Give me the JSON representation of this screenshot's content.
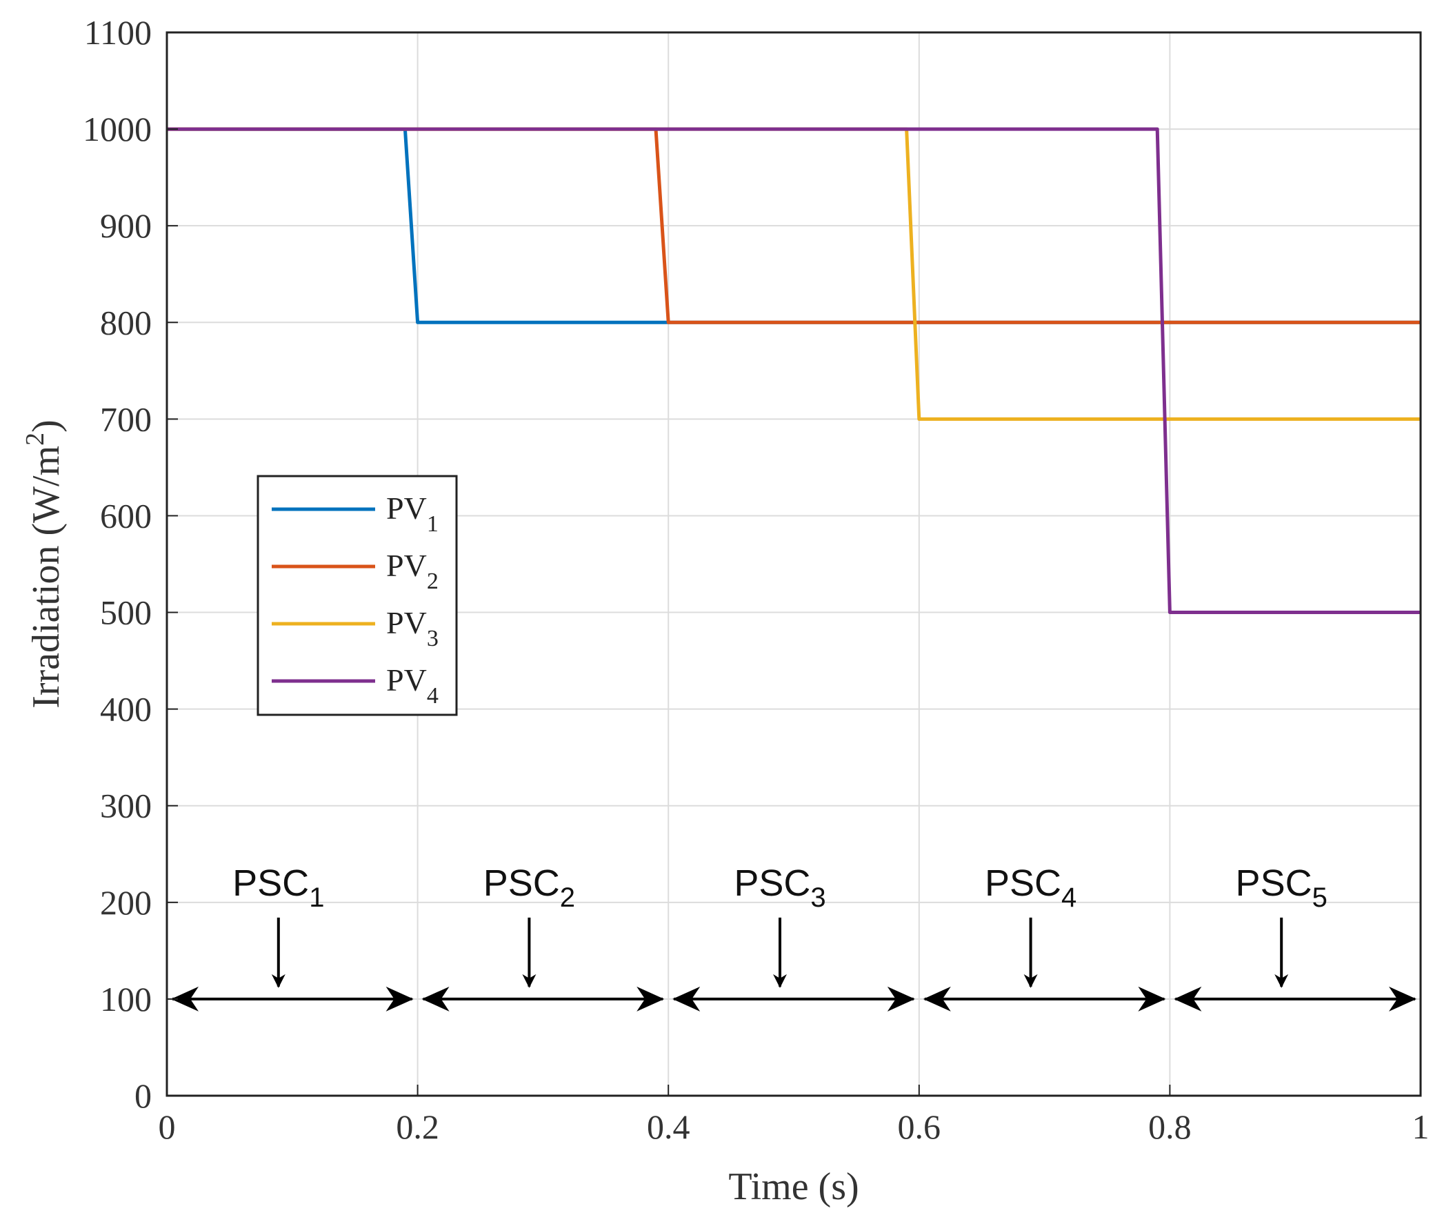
{
  "chart_data": {
    "type": "line",
    "title": "",
    "xlabel": "Time (s)",
    "ylabel": "Irradiation (W/m",
    "ylabel_superscript": "2",
    "ylabel_suffix": ")",
    "xlim": [
      0,
      1
    ],
    "ylim": [
      0,
      1100
    ],
    "x_ticks": [
      0,
      0.2,
      0.4,
      0.6,
      0.8,
      1
    ],
    "x_tick_labels": [
      "0",
      "0.2",
      "0.4",
      "0.6",
      "0.8",
      "1"
    ],
    "y_ticks": [
      0,
      100,
      200,
      300,
      400,
      500,
      600,
      700,
      800,
      900,
      1000,
      1100
    ],
    "y_tick_labels": [
      "0",
      "100",
      "200",
      "300",
      "400",
      "500",
      "600",
      "700",
      "800",
      "900",
      "1000",
      "1100"
    ],
    "grid": true,
    "legend_position": "center-left",
    "series": [
      {
        "name": "PV",
        "subscript": "1",
        "color": "#0072BD",
        "points": [
          [
            0,
            1000
          ],
          [
            0.19,
            1000
          ],
          [
            0.2,
            800
          ],
          [
            1,
            800
          ]
        ]
      },
      {
        "name": "PV",
        "subscript": "2",
        "color": "#D95319",
        "points": [
          [
            0,
            1000
          ],
          [
            0.39,
            1000
          ],
          [
            0.4,
            800
          ],
          [
            1,
            800
          ]
        ]
      },
      {
        "name": "PV",
        "subscript": "3",
        "color": "#EDB120",
        "points": [
          [
            0,
            1000
          ],
          [
            0.59,
            1000
          ],
          [
            0.6,
            700
          ],
          [
            1,
            700
          ]
        ]
      },
      {
        "name": "PV",
        "subscript": "4",
        "color": "#7E2F8E",
        "points": [
          [
            0,
            1000
          ],
          [
            0.79,
            1000
          ],
          [
            0.8,
            500
          ],
          [
            1,
            500
          ]
        ]
      }
    ],
    "annotations": [
      {
        "text": "PSC",
        "subscript": "1",
        "x_start": 0.0,
        "x_end": 0.2,
        "y": 100
      },
      {
        "text": "PSC",
        "subscript": "2",
        "x_start": 0.2,
        "x_end": 0.4,
        "y": 100
      },
      {
        "text": "PSC",
        "subscript": "3",
        "x_start": 0.4,
        "x_end": 0.6,
        "y": 100
      },
      {
        "text": "PSC",
        "subscript": "4",
        "x_start": 0.6,
        "x_end": 0.8,
        "y": 100
      },
      {
        "text": "PSC",
        "subscript": "5",
        "x_start": 0.8,
        "x_end": 1.0,
        "y": 100
      }
    ]
  }
}
